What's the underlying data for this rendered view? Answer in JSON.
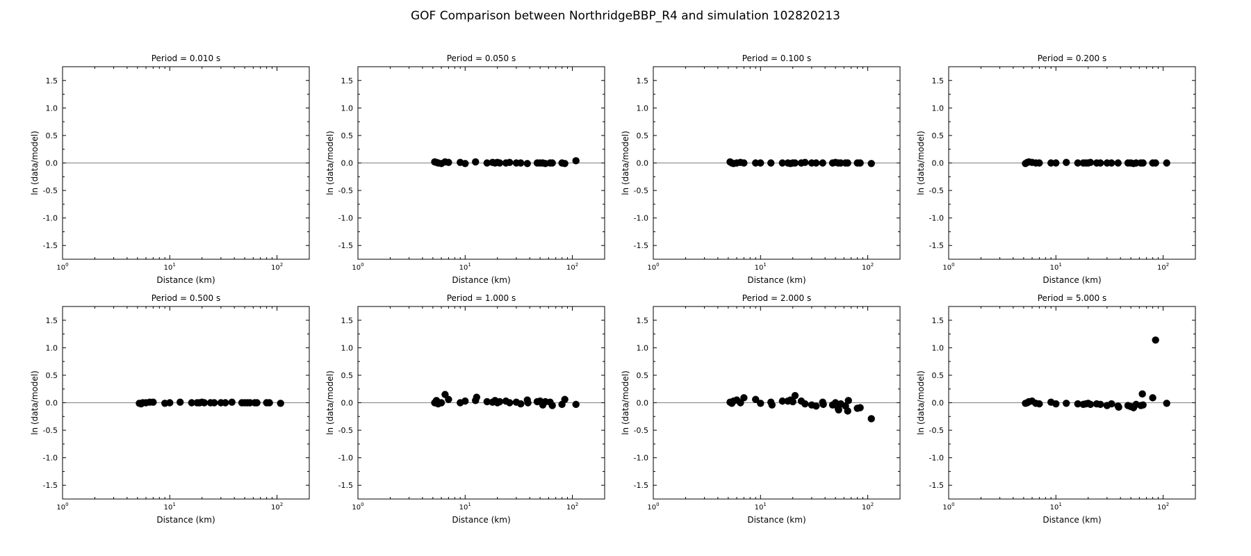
{
  "title": "GOF Comparison between NorthridgeBBP_R4 and simulation 102820213",
  "chart_data": {
    "type": "scatter",
    "xscale": "log",
    "xlim": [
      1,
      200
    ],
    "ylim": [
      -1.75,
      1.75
    ],
    "xlabel": "Distance (km)",
    "ylabel": "ln (data/model)",
    "yticks": [
      "-1.5",
      "-1.0",
      "-0.5",
      "0.0",
      "0.5",
      "1.0",
      "1.5"
    ],
    "xticks": [
      {
        "base": "10",
        "exp": "0"
      },
      {
        "base": "10",
        "exp": "1"
      },
      {
        "base": "10",
        "exp": "2"
      }
    ],
    "reference_line": 0,
    "marker_color": "#000000",
    "grid": false,
    "legend": "none",
    "panels": [
      {
        "title": "Period = 0.010 s",
        "x": [],
        "y": []
      },
      {
        "title": "Period = 0.050 s",
        "x": [
          5.2,
          5.4,
          5.6,
          6.0,
          6.5,
          7.0,
          9.0,
          10.0,
          12.5,
          16,
          18,
          19,
          20,
          21,
          24,
          26,
          30,
          33,
          38,
          47,
          50,
          53,
          56,
          62,
          65,
          80,
          85,
          108
        ],
        "y": [
          0.02,
          0.01,
          0.0,
          -0.01,
          0.02,
          0.01,
          0.01,
          -0.01,
          0.02,
          0.0,
          0.01,
          0.0,
          0.01,
          0.0,
          0.0,
          0.01,
          0.0,
          0.0,
          -0.01,
          0.0,
          0.0,
          0.0,
          -0.01,
          0.0,
          0.0,
          0.0,
          -0.01,
          0.04
        ]
      },
      {
        "title": "Period = 0.100 s",
        "x": [
          5.2,
          5.4,
          5.6,
          6.0,
          6.5,
          7.0,
          9.0,
          10.0,
          12.5,
          16,
          18,
          19,
          20,
          21,
          24,
          26,
          30,
          33,
          38,
          47,
          50,
          53,
          56,
          62,
          65,
          80,
          85,
          108
        ],
        "y": [
          0.02,
          0.0,
          -0.01,
          0.0,
          0.01,
          0.0,
          0.0,
          0.0,
          0.0,
          0.0,
          0.0,
          -0.01,
          0.0,
          0.0,
          0.0,
          0.01,
          0.0,
          0.0,
          0.0,
          0.0,
          0.01,
          0.0,
          0.0,
          0.0,
          0.0,
          0.0,
          0.0,
          -0.01
        ]
      },
      {
        "title": "Period = 0.200 s",
        "x": [
          5.2,
          5.4,
          5.6,
          6.0,
          6.5,
          7.0,
          9.0,
          10.0,
          12.5,
          16,
          18,
          19,
          20,
          21,
          24,
          26,
          30,
          33,
          38,
          47,
          50,
          53,
          56,
          62,
          65,
          80,
          85,
          108
        ],
        "y": [
          -0.01,
          0.01,
          0.02,
          0.01,
          0.0,
          0.0,
          0.0,
          0.0,
          0.01,
          0.0,
          0.0,
          0.0,
          0.0,
          0.01,
          0.0,
          0.0,
          0.0,
          0.0,
          0.0,
          0.0,
          0.0,
          -0.01,
          0.0,
          0.0,
          0.0,
          0.0,
          0.0,
          0.0
        ]
      },
      {
        "title": "Period = 0.500 s",
        "x": [
          5.2,
          5.4,
          5.6,
          6.0,
          6.5,
          7.0,
          9.0,
          10.0,
          12.5,
          16,
          18,
          19,
          20,
          21,
          24,
          26,
          30,
          33,
          38,
          47,
          50,
          53,
          56,
          62,
          65,
          80,
          85,
          108
        ],
        "y": [
          -0.01,
          -0.02,
          0.0,
          0.0,
          0.01,
          0.01,
          -0.01,
          0.0,
          0.01,
          0.0,
          0.0,
          0.0,
          0.01,
          0.0,
          0.0,
          0.0,
          0.0,
          0.0,
          0.01,
          0.0,
          0.0,
          0.0,
          0.0,
          0.0,
          0.0,
          0.0,
          0.0,
          -0.01
        ]
      },
      {
        "title": "Period = 1.000 s",
        "x": [
          5.2,
          5.4,
          5.6,
          6.0,
          6.5,
          7.0,
          9.0,
          10.0,
          12.5,
          12.8,
          16,
          18,
          19,
          20,
          21,
          24,
          26,
          30,
          33,
          38,
          38.5,
          47,
          50,
          53,
          56,
          62,
          65,
          80,
          85,
          108
        ],
        "y": [
          0.0,
          0.04,
          -0.02,
          0.0,
          0.15,
          0.06,
          0.0,
          0.03,
          0.04,
          0.1,
          0.02,
          0.01,
          0.04,
          0.0,
          0.02,
          0.03,
          0.0,
          0.01,
          -0.02,
          0.05,
          0.0,
          0.02,
          0.03,
          -0.04,
          0.02,
          0.01,
          -0.05,
          -0.03,
          0.06,
          -0.03
        ]
      },
      {
        "title": "Period = 2.000 s",
        "x": [
          5.2,
          5.4,
          5.6,
          6.0,
          6.5,
          7.0,
          9.0,
          10.0,
          12.5,
          12.8,
          16,
          18,
          19,
          20,
          21,
          24,
          26,
          30,
          33,
          38,
          38.5,
          47,
          50,
          53,
          53.5,
          56,
          62,
          65,
          66,
          80,
          85,
          108
        ],
        "y": [
          0.01,
          -0.01,
          0.03,
          0.05,
          0.0,
          0.09,
          0.06,
          -0.01,
          0.01,
          -0.04,
          0.03,
          0.03,
          0.05,
          0.02,
          0.13,
          0.03,
          -0.02,
          -0.04,
          -0.06,
          0.01,
          -0.03,
          -0.04,
          0.0,
          -0.1,
          -0.13,
          -0.02,
          -0.06,
          -0.15,
          0.04,
          -0.1,
          -0.09,
          -0.29
        ]
      },
      {
        "title": "Period = 5.000 s",
        "x": [
          5.2,
          5.4,
          5.6,
          6.0,
          6.5,
          7.0,
          9.0,
          10.0,
          12.5,
          16,
          18,
          19,
          20,
          21,
          24,
          26,
          30,
          33,
          38,
          38.5,
          47,
          50,
          53,
          56,
          62,
          64,
          65,
          80,
          85,
          108
        ],
        "y": [
          -0.01,
          0.0,
          0.02,
          0.03,
          -0.01,
          -0.02,
          0.01,
          -0.02,
          -0.01,
          -0.02,
          -0.03,
          -0.02,
          -0.01,
          -0.03,
          -0.02,
          -0.03,
          -0.05,
          -0.02,
          -0.06,
          -0.08,
          -0.05,
          -0.07,
          -0.09,
          -0.03,
          -0.05,
          0.16,
          -0.04,
          0.09,
          1.14,
          -0.01
        ]
      }
    ]
  }
}
